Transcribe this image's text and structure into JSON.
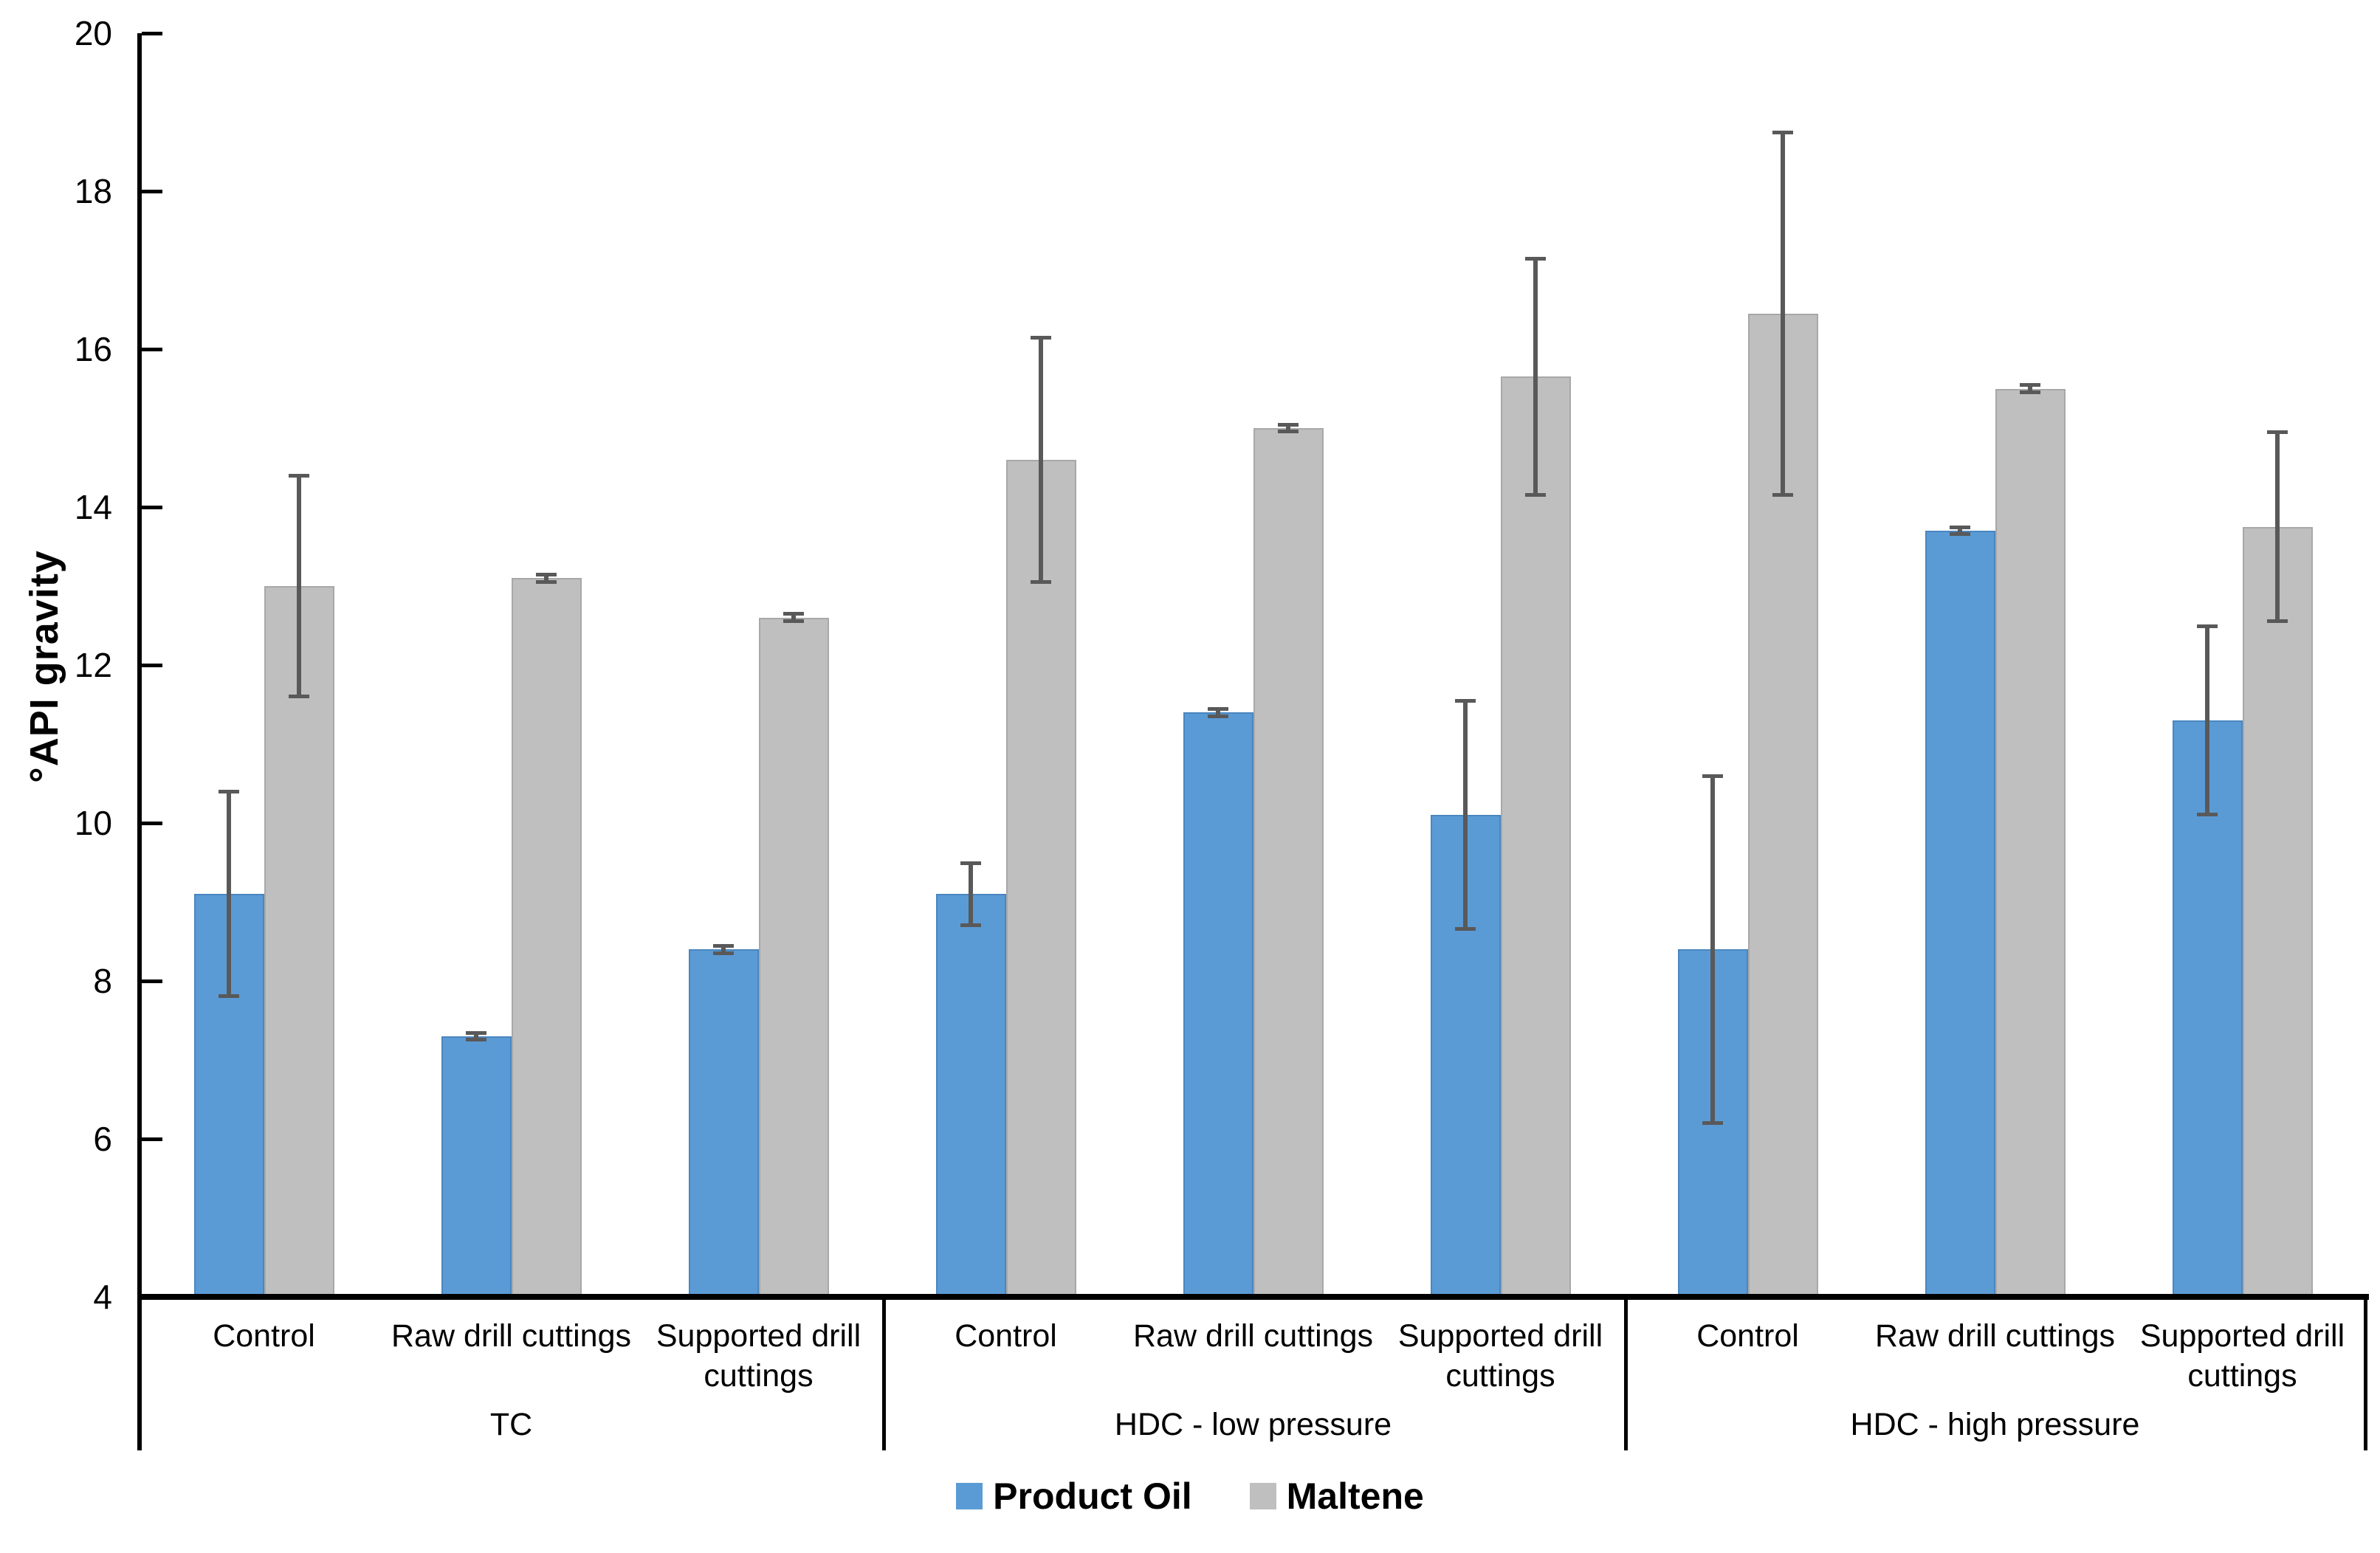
{
  "chart_data": {
    "type": "bar",
    "title": "",
    "xlabel": "",
    "ylabel": "°API gravity",
    "ylim": [
      4,
      20
    ],
    "yticks": [
      4,
      6,
      8,
      10,
      12,
      14,
      16,
      18,
      20
    ],
    "grid": false,
    "legend_position": "bottom",
    "group_labels": [
      "TC",
      "HDC - low pressure",
      "HDC - high pressure"
    ],
    "categories_per_group": [
      "Control",
      "Raw drill cuttings",
      "Supported drill cuttings"
    ],
    "series": [
      {
        "name": "Product Oil",
        "color": "#5B9BD5",
        "border_color": "#4A86BF",
        "values": [
          9.1,
          7.3,
          8.4,
          9.1,
          11.4,
          10.1,
          8.4,
          13.7,
          11.3
        ],
        "errors": [
          1.3,
          0.05,
          0.05,
          0.4,
          0.05,
          1.45,
          2.2,
          0.05,
          1.2
        ]
      },
      {
        "name": "Maltene",
        "color": "#BFBFBF",
        "border_color": "#A8A8A8",
        "values": [
          13.0,
          13.1,
          12.6,
          14.6,
          15.0,
          15.65,
          16.45,
          15.5,
          13.75
        ],
        "errors": [
          1.4,
          0.05,
          0.05,
          1.55,
          0.05,
          1.5,
          2.3,
          0.05,
          1.2
        ]
      }
    ],
    "error_bar_color": "#595959",
    "axis_color": "#000000",
    "legend": [
      {
        "label": "Product Oil",
        "color": "#5B9BD5"
      },
      {
        "label": "Maltene",
        "color": "#BFBFBF"
      }
    ]
  }
}
